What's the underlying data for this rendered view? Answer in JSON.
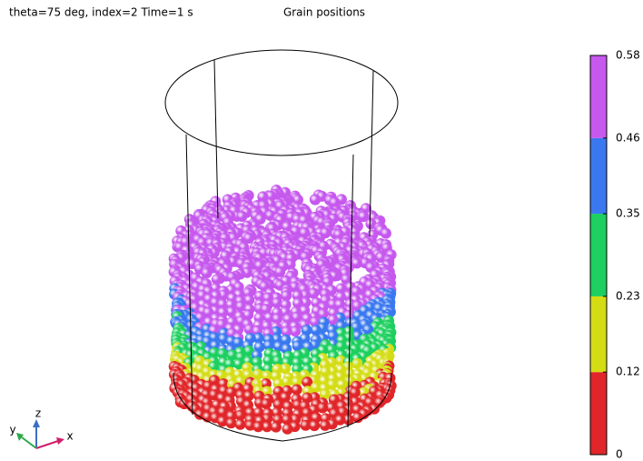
{
  "header": {
    "info": "theta=75 deg, index=2 Time=1 s",
    "title": "Grain positions"
  },
  "colorbar": {
    "ticks": [
      0,
      0.12,
      0.23,
      0.35,
      0.46,
      0.58
    ],
    "colors": [
      "#e0262a",
      "#d4dc14",
      "#1ccf5e",
      "#3a78f0",
      "#c658ee"
    ]
  },
  "axes": {
    "x": "x",
    "y": "y",
    "z": "z"
  }
}
